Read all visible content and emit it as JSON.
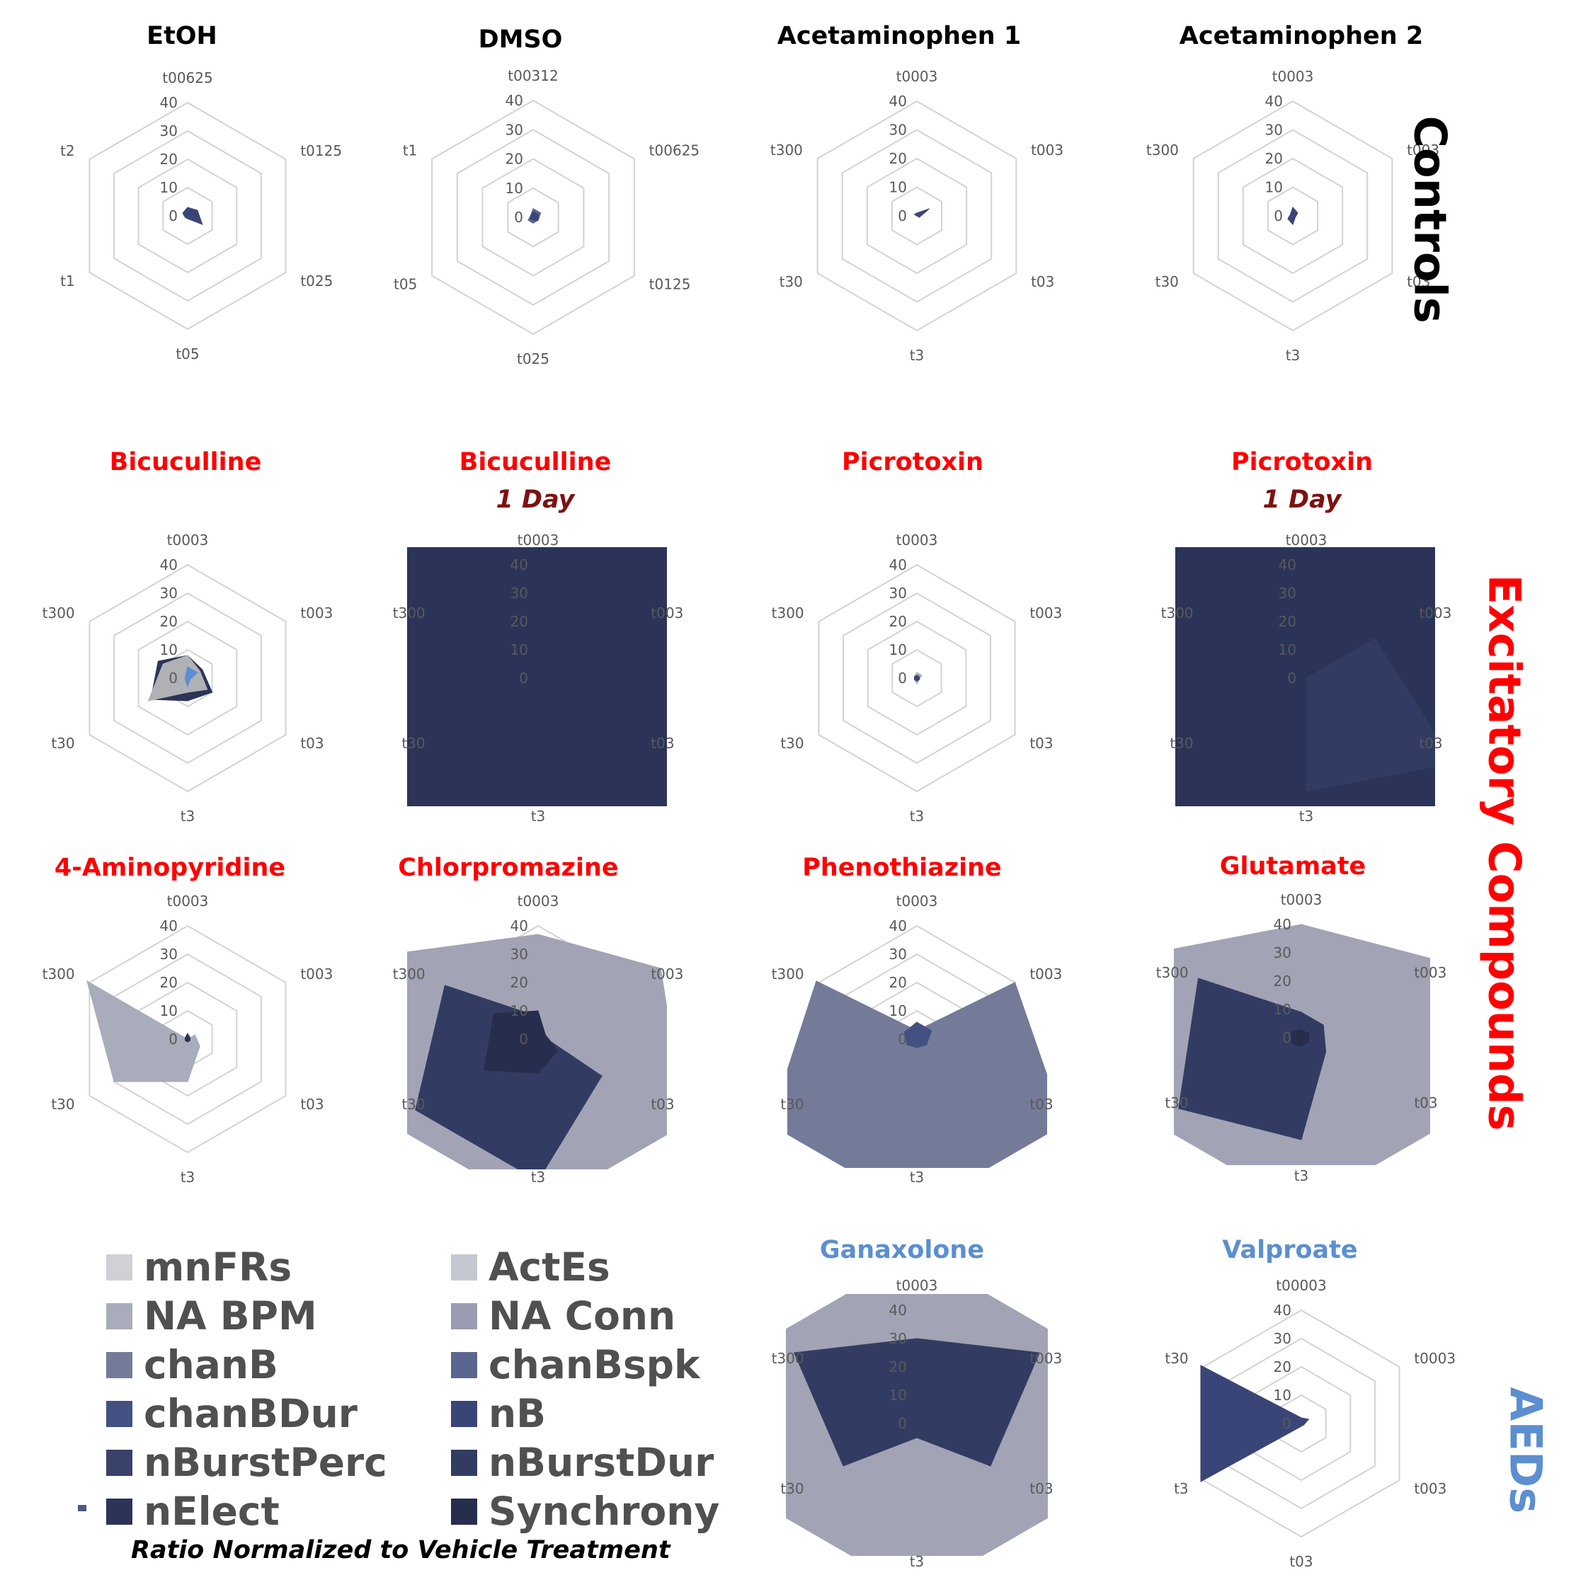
{
  "colors": {
    "grid": "#d3d3d3",
    "axis_text": "#595959",
    "title_black": "#000000",
    "title_red": "#ff0000",
    "subtitle_darkred": "#7f1010",
    "title_blue": "#5b8fd0"
  },
  "legend": {
    "items": [
      {
        "label": "mnFRs",
        "color": "#d0d1d6"
      },
      {
        "label": "ActEs",
        "color": "#c6c8d1"
      },
      {
        "label": "NA BPM",
        "color": "#a9acbb"
      },
      {
        "label": "NA Conn",
        "color": "#9a9db1"
      },
      {
        "label": "chanB",
        "color": "#747b99"
      },
      {
        "label": "chanBspk",
        "color": "#5a6590"
      },
      {
        "label": "chanBDur",
        "color": "#445082"
      },
      {
        "label": "nB",
        "color": "#3a4577"
      },
      {
        "label": "nBurstPerc",
        "color": "#38426a"
      },
      {
        "label": "nBurstDur",
        "color": "#323c63"
      },
      {
        "label": "nElect",
        "color": "#2b3458"
      },
      {
        "label": "Synchrony",
        "color": "#272d4d"
      }
    ],
    "footnote": "Ratio Normalized to Vehicle Treatment"
  },
  "group_labels": [
    {
      "text": "Controls",
      "color": "#000000"
    },
    {
      "text": "Excitatory Compounds",
      "color": "#ff0000"
    },
    {
      "text": "AEDs",
      "color": "#5b8fd0"
    }
  ],
  "chart_data": [
    {
      "type": "radar",
      "title": "EtOH",
      "title_color": "#000000",
      "axes": [
        "t00625",
        "t0125",
        "t025",
        "t05",
        "t1",
        "t2"
      ],
      "rlim": [
        0,
        40
      ],
      "rticks": [
        0,
        10,
        20,
        30,
        40
      ],
      "series": [
        {
          "color": "#3a4577",
          "values": [
            3,
            4,
            6,
            1,
            1,
            2
          ]
        }
      ]
    },
    {
      "type": "radar",
      "title": "DMSO",
      "title_color": "#000000",
      "axes": [
        "t00312",
        "t00625",
        "t0125",
        "t025",
        "t05",
        "t1"
      ],
      "rlim": [
        0,
        40
      ],
      "rticks": [
        0,
        10,
        20,
        30,
        40
      ],
      "series": [
        {
          "color": "#5a6590",
          "values": [
            3,
            3,
            2,
            2,
            2,
            1
          ]
        },
        {
          "color": "#3a4577",
          "values": [
            2,
            2,
            2,
            1,
            1,
            1
          ]
        }
      ]
    },
    {
      "type": "radar",
      "title": "Acetaminophen 1",
      "title_color": "#000000",
      "axes": [
        "t0003",
        "t003",
        "t03",
        "t3",
        "t30",
        "t300"
      ],
      "rlim": [
        0,
        40
      ],
      "rticks": [
        0,
        10,
        20,
        30,
        40
      ],
      "series": [
        {
          "color": "#3a4577",
          "values": [
            1,
            5,
            1,
            0,
            0,
            1
          ]
        }
      ]
    },
    {
      "type": "radar",
      "title": "Acetaminophen 2",
      "title_color": "#000000",
      "axes": [
        "t0003",
        "t003",
        "t03",
        "t3",
        "t30",
        "t300"
      ],
      "rlim": [
        0,
        40
      ],
      "rticks": [
        0,
        10,
        20,
        30,
        40
      ],
      "series": [
        {
          "color": "#3a4577",
          "values": [
            3,
            2,
            1,
            3,
            2,
            1
          ]
        }
      ]
    },
    {
      "type": "radar",
      "title": "Bicuculline",
      "title_color": "#ff0000",
      "axes": [
        "t0003",
        "t003",
        "t03",
        "t3",
        "t30",
        "t300"
      ],
      "rlim": [
        0,
        40
      ],
      "rticks": [
        0,
        10,
        20,
        30,
        40
      ],
      "series": [
        {
          "color": "#2b3458",
          "values": [
            8,
            6,
            10,
            8,
            15,
            12
          ]
        },
        {
          "color": "#b0b1b5",
          "values": [
            8,
            5,
            8,
            5,
            16,
            10
          ]
        },
        {
          "color": "#5b8fd0",
          "values": [
            4,
            4,
            1,
            3,
            1,
            1
          ]
        }
      ]
    },
    {
      "type": "radar",
      "title": "Bicuculline",
      "subtitle": "1 Day",
      "title_color": "#ff0000",
      "axes": [
        "t0003",
        "t003",
        "t03",
        "t3",
        "t30",
        "t300"
      ],
      "rlim": [
        0,
        40
      ],
      "rticks": [
        0,
        10,
        20,
        30,
        40
      ],
      "series": [
        {
          "color": "#2b3458",
          "values": [
            100,
            100,
            100,
            100,
            100,
            100
          ]
        }
      ]
    },
    {
      "type": "radar",
      "title": "Picrotoxin",
      "title_color": "#ff0000",
      "axes": [
        "t0003",
        "t003",
        "t03",
        "t3",
        "t30",
        "t300"
      ],
      "rlim": [
        0,
        40
      ],
      "rticks": [
        0,
        10,
        20,
        30,
        40
      ],
      "series": [
        {
          "color": "#a9acbb",
          "values": [
            2,
            2,
            1,
            2,
            1,
            1
          ]
        },
        {
          "color": "#3a4577",
          "values": [
            1,
            1,
            1,
            1,
            1,
            1
          ]
        }
      ]
    },
    {
      "type": "radar",
      "title": "Picrotoxin",
      "subtitle": "1 Day",
      "title_color": "#ff0000",
      "axes": [
        "t0003",
        "t003",
        "t03",
        "t3",
        "t30",
        "t300"
      ],
      "rlim": [
        0,
        40
      ],
      "rticks": [
        0,
        10,
        20,
        30,
        40
      ],
      "series": [
        {
          "color": "#2b3458",
          "values": [
            100,
            100,
            100,
            100,
            100,
            100
          ]
        },
        {
          "color": "#323c63",
          "values": [
            0,
            28,
            60,
            40,
            0,
            0
          ]
        }
      ]
    },
    {
      "type": "radar",
      "title": "4-Aminopyridine",
      "title_color": "#ff0000",
      "axes": [
        "t0003",
        "t003",
        "t03",
        "t3",
        "t30",
        "t300"
      ],
      "rlim": [
        0,
        40
      ],
      "rticks": [
        0,
        10,
        20,
        30,
        40
      ],
      "series": [
        {
          "color": "#a9acbb",
          "values": [
            0,
            3,
            5,
            15,
            30,
            41
          ]
        },
        {
          "color": "#2b3458",
          "values": [
            2,
            1,
            1,
            1,
            1,
            1
          ]
        }
      ]
    },
    {
      "type": "radar",
      "title": "Chlorpromazine",
      "title_color": "#ff0000",
      "axes": [
        "t0003",
        "t003",
        "t03",
        "t3",
        "t30",
        "t300"
      ],
      "rlim": [
        0,
        40
      ],
      "rticks": [
        0,
        10,
        20,
        30,
        40
      ],
      "series": [
        {
          "color": "#a2a4b5",
          "values": [
            37,
            50,
            60,
            60,
            60,
            60
          ]
        },
        {
          "color": "#323c63",
          "values": [
            8,
            2,
            26,
            50,
            50,
            38
          ]
        },
        {
          "color": "#272d4d",
          "values": [
            10,
            3,
            8,
            12,
            22,
            18
          ]
        }
      ]
    },
    {
      "type": "radar",
      "title": "Phenothiazine",
      "title_color": "#ff0000",
      "axes": [
        "t0003",
        "t003",
        "t03",
        "t3",
        "t30",
        "t300"
      ],
      "rlim": [
        0,
        40
      ],
      "rticks": [
        0,
        10,
        20,
        30,
        40
      ],
      "series": [
        {
          "color": "#747b99",
          "values": [
            3,
            40,
            60,
            60,
            60,
            41
          ]
        },
        {
          "color": "#445082",
          "values": [
            6,
            6,
            4,
            3,
            4,
            5
          ]
        }
      ]
    },
    {
      "type": "radar",
      "title": "Glutamate",
      "title_color": "#ff0000",
      "axes": [
        "t0003",
        "t003",
        "t03",
        "t3",
        "t30",
        "t300"
      ],
      "rlim": [
        0,
        40
      ],
      "rticks": [
        0,
        10,
        20,
        30,
        40
      ],
      "series": [
        {
          "color": "#a2a4b5",
          "values": [
            40,
            55,
            60,
            60,
            60,
            60
          ]
        },
        {
          "color": "#323c63",
          "values": [
            9,
            9,
            10,
            36,
            50,
            42
          ]
        },
        {
          "color": "#272d4d",
          "values": [
            3,
            3,
            3,
            3,
            4,
            4
          ]
        }
      ]
    },
    {
      "type": "radar",
      "title": "Ganaxolone",
      "title_color": "#5b8fd0",
      "axes": [
        "t0003",
        "t003",
        "t03",
        "t3",
        "t30",
        "t300"
      ],
      "rlim": [
        0,
        40
      ],
      "rticks": [
        0,
        10,
        20,
        30,
        40
      ],
      "series": [
        {
          "color": "#a2a4b5",
          "values": [
            60,
            60,
            60,
            60,
            60,
            60
          ]
        },
        {
          "color": "#323c63",
          "values": [
            30,
            50,
            30,
            5,
            30,
            50
          ]
        }
      ]
    },
    {
      "type": "radar",
      "title": "Valproate",
      "title_color": "#5b8fd0",
      "axes": [
        "t00003",
        "t0003",
        "t003",
        "t03",
        "t3",
        "t30"
      ],
      "rlim": [
        0,
        40
      ],
      "rticks": [
        0,
        10,
        20,
        30,
        40
      ],
      "series": [
        {
          "color": "#3a4577",
          "values": [
            2,
            3,
            1,
            1,
            41,
            41
          ]
        }
      ]
    }
  ]
}
